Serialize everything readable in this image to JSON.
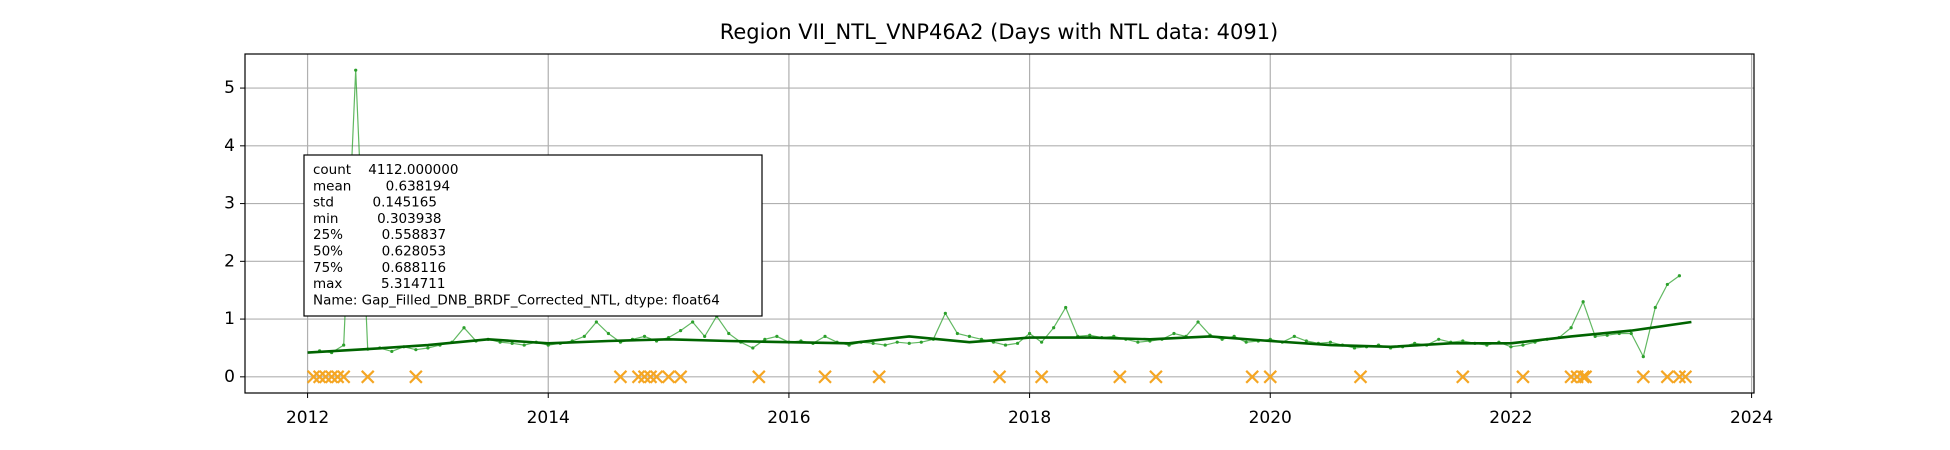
{
  "chart_data": {
    "type": "line",
    "title": "Region VII_NTL_VNP46A2 (Days with NTL data: 4091)",
    "xlim": [
      2011.48,
      2024.02
    ],
    "ylim": [
      -0.28,
      5.59
    ],
    "xticks": [
      2012,
      2014,
      2016,
      2018,
      2020,
      2022,
      2024
    ],
    "yticks": [
      0,
      1,
      2,
      3,
      4,
      5
    ],
    "grid": true,
    "series": [
      {
        "color": "#2ca02c",
        "style": "raw",
        "x": [
          2012.1,
          2012.2,
          2012.3,
          2012.4,
          2012.5,
          2012.6,
          2012.7,
          2012.8,
          2012.9,
          2013.0,
          2013.1,
          2013.2,
          2013.3,
          2013.4,
          2013.5,
          2013.6,
          2013.7,
          2013.8,
          2013.9,
          2014.0,
          2014.1,
          2014.2,
          2014.3,
          2014.4,
          2014.5,
          2014.6,
          2014.7,
          2014.8,
          2014.9,
          2015.0,
          2015.1,
          2015.2,
          2015.3,
          2015.4,
          2015.5,
          2015.6,
          2015.7,
          2015.8,
          2015.9,
          2016.0,
          2016.1,
          2016.2,
          2016.3,
          2016.4,
          2016.5,
          2016.6,
          2016.7,
          2016.8,
          2016.9,
          2017.0,
          2017.1,
          2017.2,
          2017.3,
          2017.4,
          2017.5,
          2017.6,
          2017.7,
          2017.8,
          2017.9,
          2018.0,
          2018.1,
          2018.2,
          2018.3,
          2018.4,
          2018.5,
          2018.6,
          2018.7,
          2018.8,
          2018.9,
          2019.0,
          2019.1,
          2019.2,
          2019.3,
          2019.4,
          2019.5,
          2019.6,
          2019.7,
          2019.8,
          2019.9,
          2020.0,
          2020.1,
          2020.2,
          2020.3,
          2020.4,
          2020.5,
          2020.6,
          2020.7,
          2020.8,
          2020.9,
          2021.0,
          2021.1,
          2021.2,
          2021.3,
          2021.4,
          2021.5,
          2021.6,
          2021.7,
          2021.8,
          2021.9,
          2022.0,
          2022.1,
          2022.2,
          2022.3,
          2022.4,
          2022.5,
          2022.6,
          2022.7,
          2022.8,
          2022.9,
          2023.0,
          2023.1,
          2023.2,
          2023.3,
          2023.4
        ],
        "values": [
          0.45,
          0.42,
          0.55,
          5.31,
          0.48,
          0.5,
          0.44,
          0.52,
          0.47,
          0.5,
          0.55,
          0.6,
          0.85,
          0.62,
          0.65,
          0.6,
          0.58,
          0.55,
          0.6,
          0.55,
          0.58,
          0.62,
          0.7,
          0.95,
          0.75,
          0.6,
          0.65,
          0.7,
          0.62,
          0.68,
          0.8,
          0.95,
          0.7,
          1.05,
          0.75,
          0.6,
          0.5,
          0.65,
          0.7,
          0.6,
          0.62,
          0.58,
          0.7,
          0.6,
          0.55,
          0.6,
          0.58,
          0.55,
          0.6,
          0.58,
          0.6,
          0.65,
          1.1,
          0.75,
          0.7,
          0.65,
          0.6,
          0.55,
          0.58,
          0.75,
          0.6,
          0.85,
          1.2,
          0.7,
          0.72,
          0.68,
          0.7,
          0.65,
          0.6,
          0.62,
          0.65,
          0.75,
          0.7,
          0.95,
          0.72,
          0.65,
          0.7,
          0.6,
          0.62,
          0.65,
          0.6,
          0.7,
          0.62,
          0.58,
          0.6,
          0.55,
          0.5,
          0.52,
          0.55,
          0.5,
          0.52,
          0.58,
          0.55,
          0.65,
          0.6,
          0.62,
          0.58,
          0.55,
          0.6,
          0.52,
          0.55,
          0.6,
          0.65,
          0.68,
          0.85,
          1.3,
          0.7,
          0.72,
          0.75,
          0.75,
          0.35,
          1.2,
          1.6,
          1.75
        ]
      },
      {
        "color": "#006400",
        "style": "smooth",
        "x": [
          2012.0,
          2012.5,
          2013.0,
          2013.5,
          2014.0,
          2014.5,
          2015.0,
          2015.5,
          2016.0,
          2016.5,
          2017.0,
          2017.5,
          2018.0,
          2018.5,
          2019.0,
          2019.5,
          2020.0,
          2020.5,
          2021.0,
          2021.5,
          2022.0,
          2022.5,
          2023.0,
          2023.5
        ],
        "values": [
          0.42,
          0.48,
          0.55,
          0.65,
          0.58,
          0.62,
          0.65,
          0.62,
          0.6,
          0.58,
          0.7,
          0.6,
          0.68,
          0.68,
          0.65,
          0.7,
          0.62,
          0.55,
          0.52,
          0.58,
          0.58,
          0.7,
          0.8,
          0.95
        ]
      },
      {
        "color": "#f5a623",
        "style": "missing",
        "x": [
          2012.05,
          2012.1,
          2012.15,
          2012.2,
          2012.25,
          2012.3,
          2012.5,
          2012.9,
          2014.6,
          2014.75,
          2014.8,
          2014.85,
          2014.9,
          2015.0,
          2015.1,
          2015.75,
          2016.3,
          2016.75,
          2017.75,
          2018.1,
          2018.75,
          2019.05,
          2019.85,
          2020.0,
          2020.75,
          2021.6,
          2022.1,
          2022.5,
          2022.55,
          2022.6,
          2022.62,
          2023.1,
          2023.3,
          2023.4,
          2023.45
        ],
        "values": [
          0,
          0,
          0,
          0,
          0,
          0,
          0,
          0,
          0,
          0,
          0,
          0,
          0,
          0,
          0,
          0,
          0,
          0,
          0,
          0,
          0,
          0,
          0,
          0,
          0,
          0,
          0,
          0,
          0,
          0,
          0,
          0,
          0,
          0,
          0
        ]
      }
    ],
    "annotation": [
      "count    4112.000000",
      "mean        0.638194",
      "std         0.145165",
      "min         0.303938",
      "25%         0.558837",
      "50%         0.628053",
      "75%         0.688116",
      "max         5.314711",
      "Name: Gap_Filled_DNB_BRDF_Corrected_NTL, dtype: float64"
    ]
  }
}
